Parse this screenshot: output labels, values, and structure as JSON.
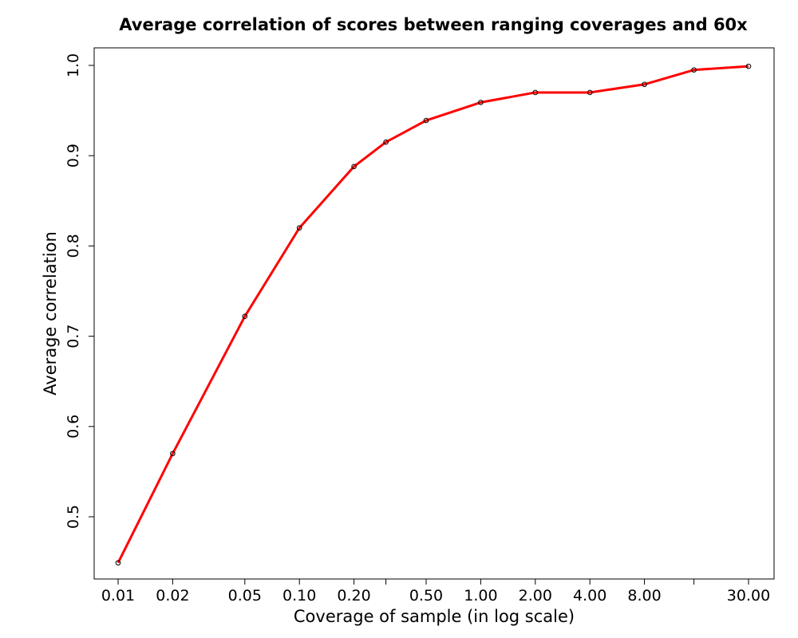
{
  "chart_data": {
    "type": "line",
    "title": "Average correlation of scores between ranging coverages and 60x",
    "xlabel": "Coverage of sample (in log scale)",
    "ylabel": "Average correlation",
    "x_scale": "log",
    "xlim": [
      0.01,
      30.0
    ],
    "ylim": [
      0.45,
      1.0
    ],
    "grid": false,
    "series_color": "#ff0000",
    "marker_color": "#000000",
    "x_ticks": [
      {
        "value": 0.01,
        "label": "0.01"
      },
      {
        "value": 0.02,
        "label": "0.02"
      },
      {
        "value": 0.05,
        "label": "0.05"
      },
      {
        "value": 0.1,
        "label": "0.10"
      },
      {
        "value": 0.2,
        "label": "0.20"
      },
      {
        "value": 0.3,
        "label": ""
      },
      {
        "value": 0.5,
        "label": "0.50"
      },
      {
        "value": 1.0,
        "label": "1.00"
      },
      {
        "value": 2.0,
        "label": "2.00"
      },
      {
        "value": 4.0,
        "label": "4.00"
      },
      {
        "value": 8.0,
        "label": "8.00"
      },
      {
        "value": 15.0,
        "label": ""
      },
      {
        "value": 30.0,
        "label": "30.00"
      }
    ],
    "y_ticks": [
      {
        "value": 0.5,
        "label": "0.5"
      },
      {
        "value": 0.6,
        "label": "0.6"
      },
      {
        "value": 0.7,
        "label": "0.7"
      },
      {
        "value": 0.8,
        "label": "0.8"
      },
      {
        "value": 0.9,
        "label": "0.9"
      },
      {
        "value": 1.0,
        "label": "1.0"
      }
    ],
    "series": [
      {
        "x": [
          0.01,
          0.02,
          0.05,
          0.1,
          0.2,
          0.3,
          0.5,
          1.0,
          2.0,
          4.0,
          8.0,
          15.0,
          30.0
        ],
        "y": [
          0.449,
          0.57,
          0.722,
          0.82,
          0.888,
          0.915,
          0.939,
          0.959,
          0.97,
          0.97,
          0.979,
          0.995,
          0.999
        ]
      }
    ]
  }
}
